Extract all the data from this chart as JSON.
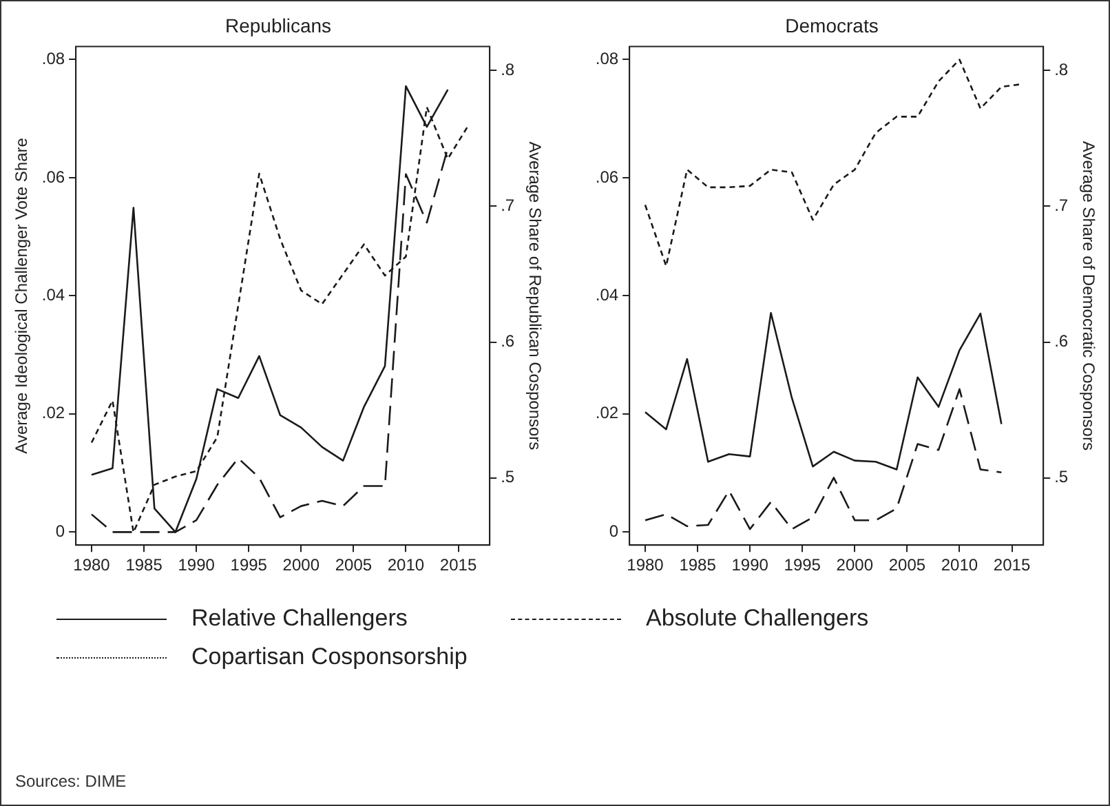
{
  "chart_data": [
    {
      "type": "line",
      "title": "Republicans",
      "ylabel": "Average Ideological Challenger Vote Share",
      "y2label": "Average Share of Republican Cosponsors",
      "x": [
        1980,
        1982,
        1984,
        1986,
        1988,
        1990,
        1992,
        1994,
        1996,
        1998,
        2000,
        2002,
        2004,
        2006,
        2008,
        2010,
        2012,
        2014,
        2016
      ],
      "series": [
        {
          "name": "Relative Challengers",
          "color": "#1a1a1a",
          "line_style": "solid",
          "values": [
            0.0097,
            0.0108,
            0.0549,
            0.004,
            0,
            0.009,
            0.0242,
            0.0227,
            0.0298,
            0.0198,
            0.0177,
            0.0144,
            0.0121,
            0.0212,
            0.0281,
            0.0755,
            0.0686,
            0.0749,
            null
          ]
        },
        {
          "name": "Absolute Challengers",
          "color": "#1a1a1a",
          "line_style": "dashed",
          "values": [
            0.003,
            0,
            0,
            0,
            0,
            0.002,
            0.008,
            0.0125,
            0.0092,
            0.0025,
            0.0044,
            0.0053,
            0.0044,
            0.0078,
            0.0078,
            0.0606,
            0.0524,
            0.065,
            null
          ]
        },
        {
          "name": "Copartisan Cosponsorship",
          "color": "#1a1a1a",
          "line_style": "dotted",
          "axis": "y2",
          "values": [
            0.526,
            0.557,
            0.46,
            0.495,
            0.501,
            0.505,
            0.53,
            0.627,
            0.724,
            0.676,
            0.638,
            0.628,
            0.65,
            0.672,
            0.649,
            0.663,
            0.773,
            0.735,
            0.76
          ]
        }
      ],
      "xlim": [
        1978.5,
        2018
      ],
      "xticks": [
        1980,
        1985,
        1990,
        1995,
        2000,
        2005,
        2010,
        2015
      ],
      "ylim": [
        -0.0022,
        0.0822
      ],
      "yticks": [
        0,
        {
          "value": 0.02,
          "label": ".02"
        },
        {
          "value": 0.04,
          "label": ".04"
        },
        {
          "value": 0.06,
          "label": ".06"
        },
        {
          "value": 0.08,
          "label": ".08"
        }
      ],
      "y2lim": [
        0.4506,
        0.8176
      ],
      "y2ticks": [
        {
          "value": 0.5,
          "label": ".5"
        },
        {
          "value": 0.6,
          "label": ".6"
        },
        {
          "value": 0.7,
          "label": ".7"
        },
        {
          "value": 0.8,
          "label": ".8"
        }
      ],
      "grid": false,
      "marker": "none",
      "legend": "bottom",
      "annotations": [
        "Sources: DIME"
      ]
    },
    {
      "type": "line",
      "title": "Democrats",
      "y2label": "Average Share of Democratic Cosponsors",
      "x": [
        1980,
        1982,
        1984,
        1986,
        1988,
        1990,
        1992,
        1994,
        1996,
        1998,
        2000,
        2002,
        2004,
        2006,
        2008,
        2010,
        2012,
        2014,
        2016
      ],
      "series": [
        {
          "color": "#1a1a1a",
          "line_style": "solid",
          "values": [
            0.0203,
            0.0174,
            0.0293,
            0.0119,
            0.0132,
            0.0128,
            0.0371,
            0.0227,
            0.0111,
            0.0136,
            0.0121,
            0.0119,
            0.0106,
            0.0262,
            0.0212,
            0.0308,
            0.037,
            0.0183,
            null
          ]
        },
        {
          "color": "#1a1a1a",
          "line_style": "dashed",
          "values": [
            0.002,
            0.003,
            0.001,
            0.0012,
            0.007,
            0.0005,
            0.0051,
            0.0005,
            0.0025,
            0.0092,
            0.002,
            0.002,
            0.004,
            0.0149,
            0.0139,
            0.0242,
            0.0106,
            0.0101,
            null
          ]
        },
        {
          "color": "#1a1a1a",
          "line_style": "dotted",
          "axis": "y2",
          "values": [
            0.701,
            0.656,
            0.727,
            0.714,
            0.714,
            0.715,
            0.727,
            0.725,
            0.69,
            0.716,
            0.727,
            0.754,
            0.766,
            0.766,
            0.792,
            0.808,
            0.772,
            0.788,
            0.79
          ]
        }
      ],
      "xlim": [
        1978.5,
        2018
      ],
      "xticks": [
        1980,
        1985,
        1990,
        1995,
        2000,
        2005,
        2010,
        2015
      ],
      "ylim": [
        -0.0022,
        0.0822
      ],
      "yticks": [
        0,
        {
          "value": 0.02,
          "label": ".02"
        },
        {
          "value": 0.04,
          "label": ".04"
        },
        {
          "value": 0.06,
          "label": ".06"
        },
        {
          "value": 0.08,
          "label": ".08"
        }
      ],
      "y2lim": [
        0.4506,
        0.8176
      ],
      "y2ticks": [
        {
          "value": 0.5,
          "label": ".5"
        },
        {
          "value": 0.6,
          "label": ".6"
        },
        {
          "value": 0.7,
          "label": ".7"
        },
        {
          "value": 0.8,
          "label": ".8"
        }
      ],
      "grid": false,
      "marker": "none"
    }
  ]
}
